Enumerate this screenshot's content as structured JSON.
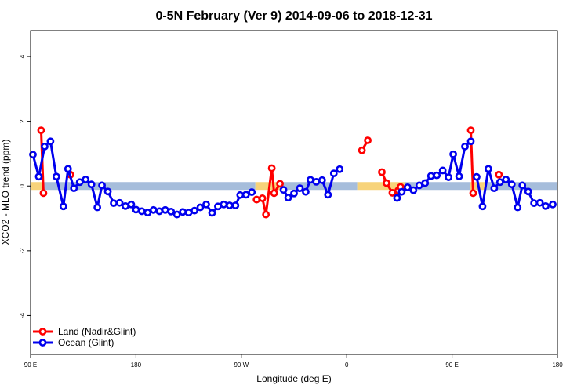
{
  "chart_data": {
    "type": "line",
    "title": "0-5N February (Ver 9)   2014-09-06 to 2018-12-31",
    "xlabel": "Longitude (deg E)",
    "ylabel": "XCO2 - MLO trend (ppm)",
    "xlim": [
      90,
      540
    ],
    "ylim": [
      -5.2,
      4.8
    ],
    "x_ticks": [
      {
        "value": 90,
        "label": "90 E"
      },
      {
        "value": 180,
        "label": "180"
      },
      {
        "value": 270,
        "label": "90 W"
      },
      {
        "value": 360,
        "label": "0"
      },
      {
        "value": 450,
        "label": "90 E"
      },
      {
        "value": 540,
        "label": "180"
      }
    ],
    "y_ticks": [
      {
        "value": -4,
        "label": "-4"
      },
      {
        "value": -2,
        "label": "-2"
      },
      {
        "value": 0,
        "label": "0"
      },
      {
        "value": 2,
        "label": "2"
      },
      {
        "value": 4,
        "label": "4"
      }
    ],
    "background_band": {
      "y": 0,
      "segments": [
        {
          "x0": 90,
          "x1": 100,
          "color": "#F7D37A"
        },
        {
          "x0": 100,
          "x1": 149,
          "color": "#A6BDDB"
        },
        {
          "x0": 149,
          "x1": 152,
          "color": "#F7D37A"
        },
        {
          "x0": 152,
          "x1": 282,
          "color": "#A6BDDB"
        },
        {
          "x0": 282,
          "x1": 303,
          "color": "#F7D37A"
        },
        {
          "x0": 303,
          "x1": 369,
          "color": "#A6BDDB"
        },
        {
          "x0": 369,
          "x1": 410,
          "color": "#F7D37A"
        },
        {
          "x0": 410,
          "x1": 465,
          "color": "#A6BDDB"
        },
        {
          "x0": 465,
          "x1": 479,
          "color": "#F7D37A"
        },
        {
          "x0": 479,
          "x1": 540,
          "color": "#A6BDDB"
        }
      ]
    },
    "series": [
      {
        "name": "Land (Nadir&Glint)",
        "color": "#FF0000",
        "segments": [
          [
            [
              99,
              1.72
            ],
            [
              101,
              -0.22
            ]
          ],
          [
            [
              124,
              0.35
            ]
          ],
          [
            [
              283,
              -0.42
            ],
            [
              288,
              -0.38
            ],
            [
              291,
              -0.88
            ],
            [
              296,
              0.55
            ],
            [
              298,
              -0.22
            ],
            [
              303,
              0.07
            ]
          ],
          [
            [
              373,
              1.1
            ],
            [
              378,
              1.41
            ]
          ],
          [
            [
              390,
              0.43
            ],
            [
              394,
              0.09
            ],
            [
              399,
              -0.21
            ],
            [
              404,
              -0.14
            ],
            [
              406,
              -0.03
            ]
          ],
          [
            [
              466,
              1.72
            ],
            [
              468,
              -0.22
            ]
          ],
          [
            [
              490,
              0.35
            ]
          ]
        ]
      },
      {
        "name": "Ocean (Glint)",
        "color": "#0000EE",
        "segments": [
          [
            [
              92,
              0.97
            ],
            [
              97,
              0.29
            ],
            [
              102,
              1.22
            ],
            [
              107,
              1.38
            ],
            [
              112,
              0.29
            ],
            [
              118,
              -0.63
            ],
            [
              122,
              0.53
            ],
            [
              127,
              -0.07
            ],
            [
              132,
              0.12
            ],
            [
              137,
              0.2
            ],
            [
              142,
              0.05
            ],
            [
              147,
              -0.66
            ],
            [
              151,
              0.02
            ],
            [
              156,
              -0.17
            ],
            [
              161,
              -0.53
            ],
            [
              166,
              -0.52
            ],
            [
              171,
              -0.62
            ],
            [
              176,
              -0.57
            ],
            [
              180,
              -0.73
            ],
            [
              185,
              -0.78
            ],
            [
              190,
              -0.82
            ],
            [
              195,
              -0.74
            ],
            [
              200,
              -0.78
            ],
            [
              205,
              -0.74
            ],
            [
              210,
              -0.79
            ],
            [
              215,
              -0.88
            ],
            [
              220,
              -0.8
            ],
            [
              225,
              -0.82
            ],
            [
              230,
              -0.76
            ],
            [
              235,
              -0.66
            ],
            [
              240,
              -0.57
            ],
            [
              245,
              -0.83
            ],
            [
              250,
              -0.63
            ],
            [
              255,
              -0.57
            ],
            [
              260,
              -0.6
            ],
            [
              265,
              -0.6
            ],
            [
              269,
              -0.28
            ],
            [
              274,
              -0.27
            ],
            [
              279,
              -0.19
            ]
          ],
          [
            [
              306,
              -0.12
            ],
            [
              310,
              -0.36
            ],
            [
              315,
              -0.23
            ],
            [
              320,
              -0.07
            ],
            [
              325,
              -0.18
            ],
            [
              329,
              0.19
            ],
            [
              334,
              0.13
            ],
            [
              339,
              0.18
            ],
            [
              344,
              -0.27
            ],
            [
              349,
              0.39
            ],
            [
              354,
              0.52
            ]
          ],
          [
            [
              403,
              -0.37
            ],
            [
              407,
              -0.18
            ],
            [
              412,
              -0.04
            ],
            [
              417,
              -0.13
            ],
            [
              422,
              0.02
            ],
            [
              427,
              0.09
            ],
            [
              432,
              0.31
            ],
            [
              437,
              0.33
            ],
            [
              442,
              0.48
            ],
            [
              447,
              0.27
            ],
            [
              451,
              0.98
            ],
            [
              456,
              0.3
            ],
            [
              461,
              1.22
            ],
            [
              466,
              1.38
            ]
          ],
          [
            [
              471,
              0.28
            ],
            [
              476,
              -0.63
            ],
            [
              481,
              0.53
            ],
            [
              486,
              -0.07
            ],
            [
              491,
              0.12
            ],
            [
              496,
              0.2
            ],
            [
              501,
              0.05
            ],
            [
              506,
              -0.66
            ],
            [
              510,
              0.02
            ],
            [
              515,
              -0.17
            ],
            [
              520,
              -0.53
            ],
            [
              525,
              -0.52
            ],
            [
              530,
              -0.62
            ],
            [
              536,
              -0.57
            ]
          ]
        ]
      }
    ],
    "legend": {
      "position": "bottom-left",
      "entries": [
        {
          "label": "Land (Nadir&Glint)",
          "color": "#FF0000"
        },
        {
          "label": "Ocean (Glint)",
          "color": "#0000EE"
        }
      ]
    },
    "grid": false
  }
}
